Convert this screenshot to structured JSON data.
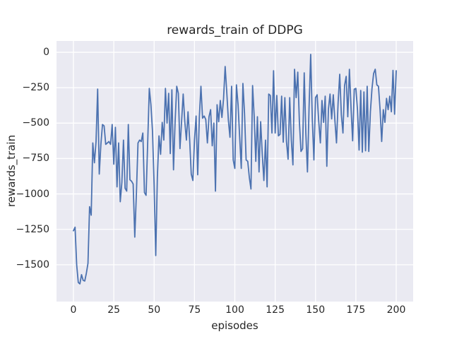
{
  "chart": {
    "title": "rewards_train of DDPG",
    "xlabel": "episodes",
    "ylabel": "rewards_train"
  },
  "chart_data": {
    "type": "line",
    "title": "rewards_train of DDPG",
    "xlabel": "episodes",
    "ylabel": "rewards_train",
    "legend": null,
    "grid": true,
    "plot_bg_color": "#EAEAF2",
    "grid_color": "#FFFFFF",
    "line_color": "#4C72B0",
    "text_color": "#262626",
    "xlim": [
      -10.5,
      210.5
    ],
    "ylim": [
      -1760,
      80
    ],
    "x_ticks": [
      0,
      25,
      50,
      75,
      100,
      125,
      150,
      175,
      200
    ],
    "x_tick_labels": [
      "0",
      "25",
      "50",
      "75",
      "100",
      "125",
      "150",
      "175",
      "200"
    ],
    "y_ticks": [
      0,
      -250,
      -500,
      -750,
      -1000,
      -1250,
      -1500
    ],
    "y_tick_labels": [
      "0",
      "−250",
      "−500",
      "−750",
      "−1000",
      "−1250",
      "−1500"
    ],
    "series": [
      {
        "name": "rewards_train",
        "x_start": 0,
        "x_step": 1,
        "values": [
          -1260,
          -1235,
          -1500,
          -1625,
          -1635,
          -1570,
          -1610,
          -1615,
          -1560,
          -1490,
          -1090,
          -1150,
          -640,
          -780,
          -630,
          -260,
          -860,
          -650,
          -510,
          -520,
          -650,
          -640,
          -630,
          -650,
          -510,
          -790,
          -530,
          -950,
          -640,
          -1055,
          -920,
          -620,
          -960,
          -980,
          -510,
          -900,
          -910,
          -930,
          -1305,
          -1000,
          -640,
          -620,
          -630,
          -570,
          -990,
          -1010,
          -640,
          -255,
          -370,
          -560,
          -940,
          -1435,
          -880,
          -590,
          -720,
          -495,
          -620,
          -255,
          -500,
          -290,
          -715,
          -265,
          -830,
          -490,
          -240,
          -290,
          -680,
          -490,
          -295,
          -490,
          -620,
          -420,
          -615,
          -860,
          -905,
          -620,
          -450,
          -865,
          -460,
          -240,
          -465,
          -450,
          -475,
          -640,
          -455,
          -405,
          -660,
          -500,
          -980,
          -370,
          -490,
          -340,
          -460,
          -330,
          -100,
          -280,
          -480,
          -600,
          -240,
          -760,
          -820,
          -230,
          -370,
          -600,
          -820,
          -220,
          -430,
          -760,
          -770,
          -885,
          -965,
          -235,
          -455,
          -770,
          -455,
          -845,
          -490,
          -720,
          -905,
          -620,
          -950,
          -295,
          -305,
          -570,
          -130,
          -570,
          -305,
          -590,
          -580,
          -310,
          -635,
          -320,
          -630,
          -755,
          -320,
          -620,
          -795,
          -120,
          -320,
          -140,
          -490,
          -700,
          -680,
          -145,
          -570,
          -845,
          -390,
          -15,
          -470,
          -760,
          -320,
          -300,
          -490,
          -640,
          -340,
          -495,
          -310,
          -805,
          -400,
          -295,
          -470,
          -300,
          -480,
          -640,
          -355,
          -155,
          -440,
          -570,
          -235,
          -170,
          -455,
          -120,
          -390,
          -625,
          -260,
          -255,
          -405,
          -690,
          -270,
          -705,
          -280,
          -695,
          -240,
          -700,
          -420,
          -255,
          -150,
          -120,
          -230,
          -240,
          -405,
          -630,
          -405,
          -495,
          -325,
          -405,
          -310,
          -420,
          -128,
          -437,
          -130
        ]
      }
    ]
  }
}
